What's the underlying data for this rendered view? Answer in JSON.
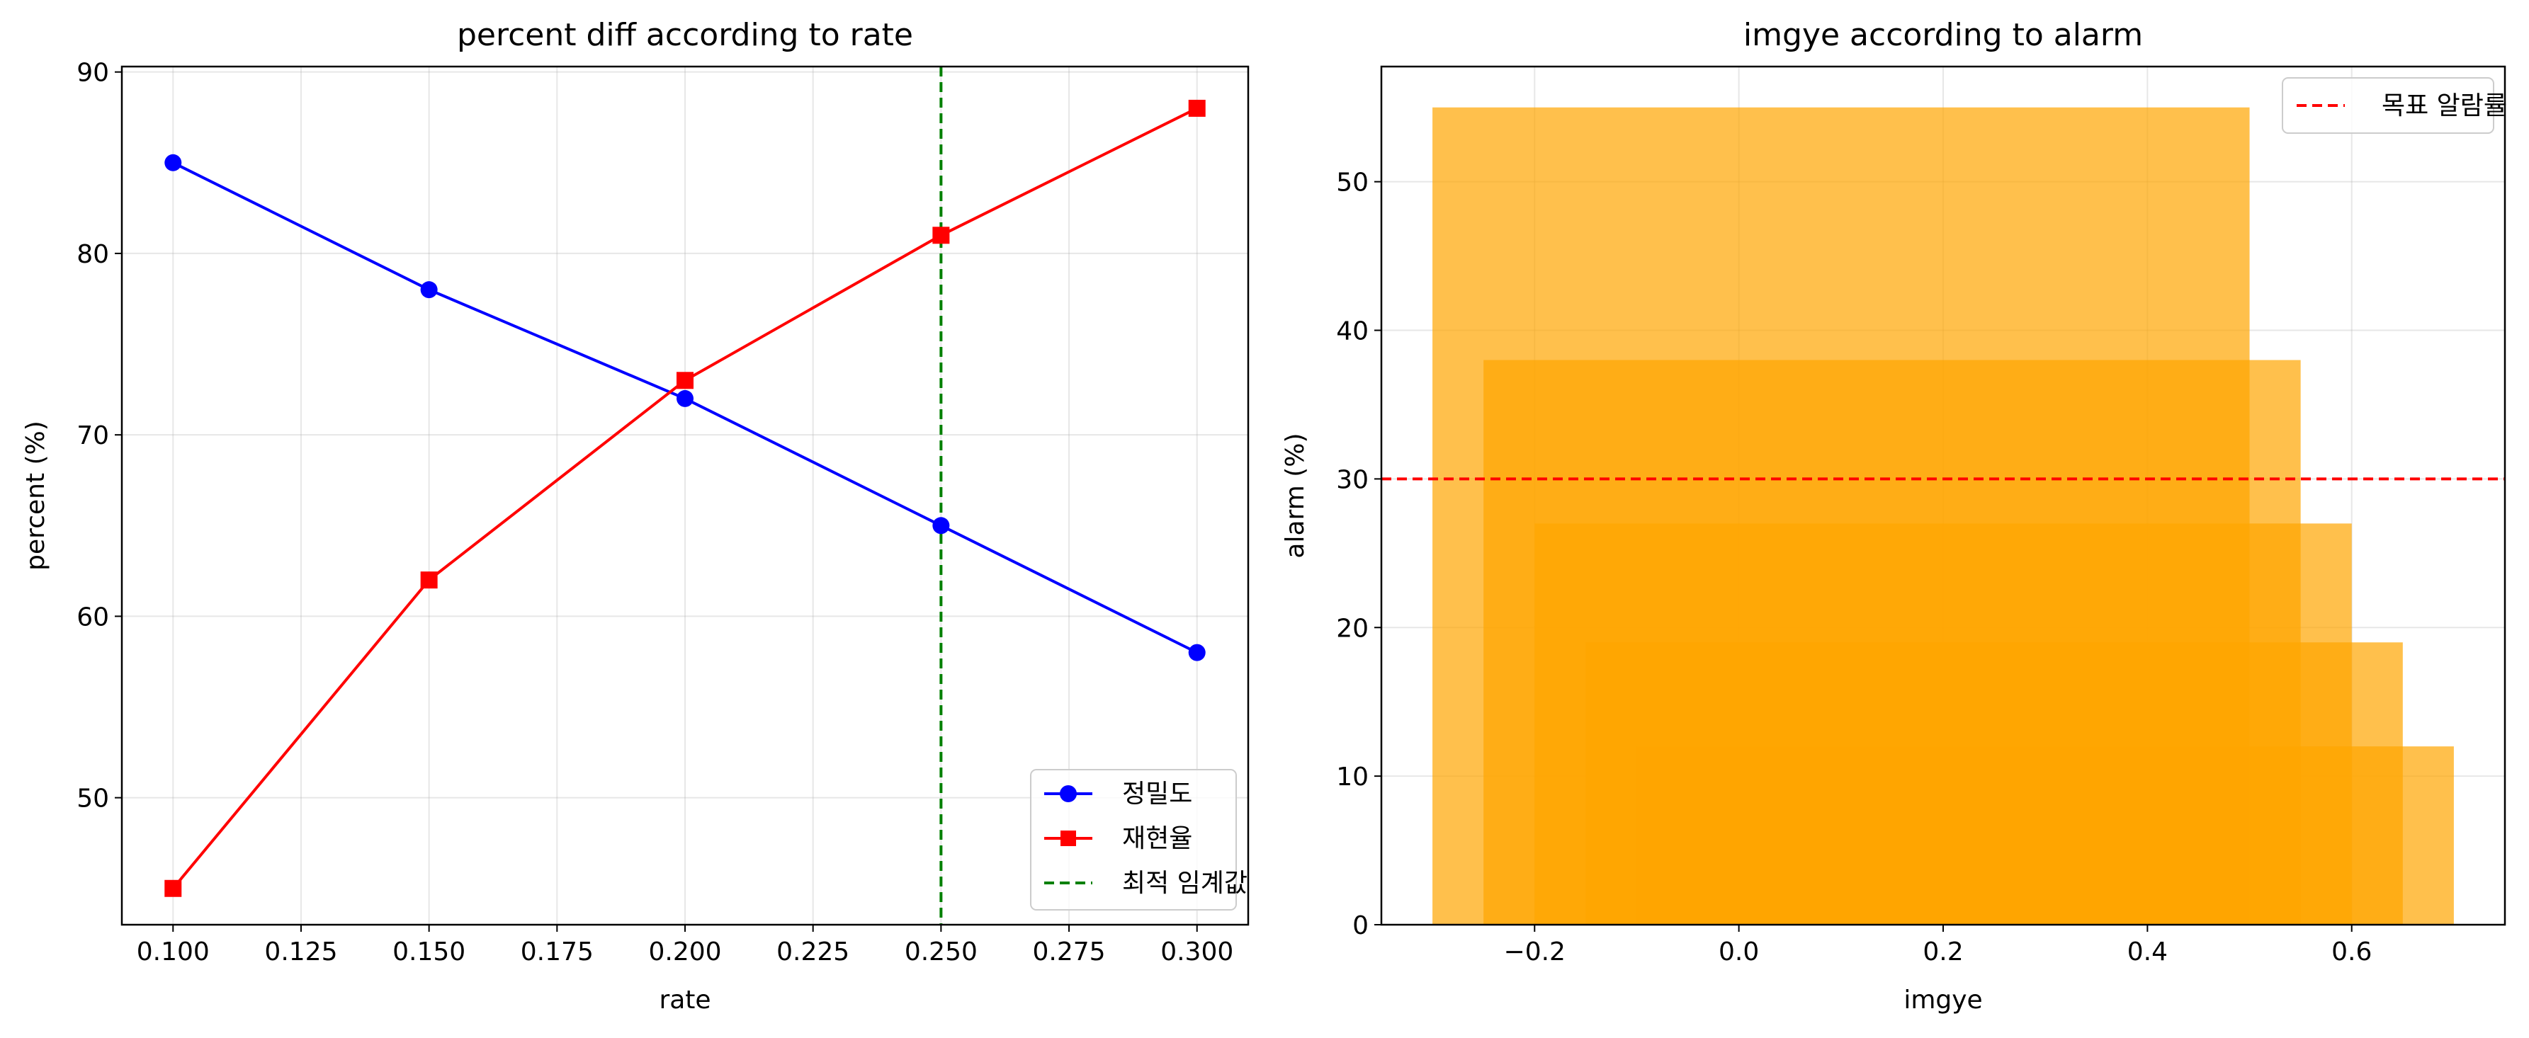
{
  "chart_data": [
    {
      "type": "line",
      "title": "percent diff according to rate",
      "xlabel": "rate",
      "ylabel": "percent (%)",
      "xlim": [
        0.09,
        0.31
      ],
      "ylim": [
        43,
        90.3
      ],
      "xticks": [
        "0.100",
        "0.125",
        "0.150",
        "0.175",
        "0.200",
        "0.225",
        "0.250",
        "0.275",
        "0.300"
      ],
      "yticks": [
        "50",
        "60",
        "70",
        "80",
        "90"
      ],
      "grid": true,
      "legend_position": "lower-right",
      "x": [
        0.1,
        0.15,
        0.2,
        0.25,
        0.3
      ],
      "series": [
        {
          "name": "정밀도",
          "values": [
            85,
            78,
            72,
            65,
            58
          ],
          "color": "#0000ff",
          "marker": "circle"
        },
        {
          "name": "재현율",
          "values": [
            45,
            62,
            73,
            81,
            88
          ],
          "color": "#ff0000",
          "marker": "square"
        }
      ],
      "reference_line": {
        "name": "최적 임계값",
        "x": 0.25,
        "color": "#008000",
        "style": "dashed"
      }
    },
    {
      "type": "bar",
      "title": "imgye according to alarm",
      "xlabel": "imgye",
      "ylabel": "alarm (%)",
      "xlim": [
        -0.35,
        0.75
      ],
      "ylim": [
        0,
        57.75
      ],
      "xticks": [
        "−0.2",
        "0.0",
        "0.2",
        "0.4",
        "0.6"
      ],
      "yticks": [
        "0",
        "10",
        "20",
        "30",
        "40",
        "50"
      ],
      "grid": true,
      "legend_position": "upper-right",
      "bar_color": "#ffa500",
      "bars": [
        {
          "x_start": -0.3,
          "x_end": 0.5,
          "value": 55
        },
        {
          "x_start": -0.25,
          "x_end": 0.55,
          "value": 38
        },
        {
          "x_start": -0.2,
          "x_end": 0.6,
          "value": 27
        },
        {
          "x_start": -0.15,
          "x_end": 0.65,
          "value": 19
        },
        {
          "x_start": -0.1,
          "x_end": 0.7,
          "value": 12
        }
      ],
      "reference_line": {
        "name": "목표 알람률",
        "y": 30,
        "color": "#ff0000",
        "style": "dashed"
      }
    }
  ]
}
